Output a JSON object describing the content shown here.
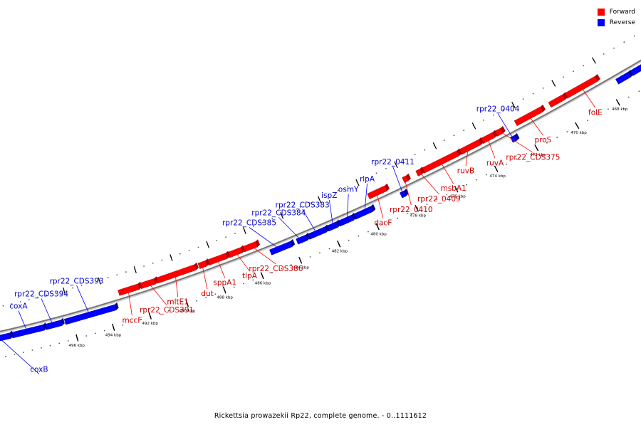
{
  "legend": [
    {
      "label": "Forward",
      "color": "#ff0000"
    },
    {
      "label": "Reverse",
      "color": "#0000ff"
    }
  ],
  "colors": {
    "forward": "#ff0000",
    "forward_dark": "#b00000",
    "forward_light": "#ff7a7a",
    "reverse": "#0000ff",
    "reverse_dark": "#000099",
    "reverse_light": "#6a6aff",
    "backbone": "#777777",
    "forward_label": "#cc0000",
    "reverse_label": "#0000cc"
  },
  "caption": "Rickettsia prowazekii Rp22, complete genome. - 0..1111612",
  "map": {
    "kbp_start": 466,
    "kbp_end": 498,
    "ticks": [
      {
        "kbp": 468,
        "label": "468 kbp"
      },
      {
        "kbp": 470,
        "label": "470 kbp"
      },
      {
        "kbp": 472,
        "label": "472 kbp"
      },
      {
        "kbp": 474,
        "label": "474 kbp"
      },
      {
        "kbp": 476,
        "label": "476 kbp"
      },
      {
        "kbp": 478,
        "label": "478 kbp"
      },
      {
        "kbp": 480,
        "label": "480 kbp"
      },
      {
        "kbp": 482,
        "label": "482 kbp"
      },
      {
        "kbp": 484,
        "label": "484 kbp"
      },
      {
        "kbp": 486,
        "label": "486 kbp"
      },
      {
        "kbp": 488,
        "label": "488 kbp"
      },
      {
        "kbp": 490,
        "label": "490 kbp"
      },
      {
        "kbp": 492,
        "label": "492 kbp"
      },
      {
        "kbp": 494,
        "label": "494 kbp"
      },
      {
        "kbp": 496,
        "label": "496 kbp"
      }
    ]
  },
  "genes": [
    {
      "name": "",
      "strand": "reverse",
      "start": 466.3,
      "end": 466.9
    },
    {
      "name": "",
      "strand": "reverse",
      "start": 467.0,
      "end": 467.6
    },
    {
      "name": "folE",
      "strand": "forward",
      "start": 468.3,
      "end": 469.8
    },
    {
      "name": "",
      "strand": "forward",
      "start": 469.9,
      "end": 470.6
    },
    {
      "name": "proS",
      "strand": "forward",
      "start": 471.0,
      "end": 472.3
    },
    {
      "name": "rpr22_0404",
      "strand": "reverse",
      "start": 472.6,
      "end": 472.8
    },
    {
      "name": "rpr22_CDS375",
      "strand": "forward",
      "start": 473.0,
      "end": 473.3
    },
    {
      "name": "ruvA",
      "strand": "forward",
      "start": 473.4,
      "end": 474.0
    },
    {
      "name": "ruvB",
      "strand": "forward",
      "start": 474.1,
      "end": 475.1
    },
    {
      "name": "msbA1",
      "strand": "forward",
      "start": 475.2,
      "end": 477.0
    },
    {
      "name": "rpr22_0409",
      "strand": "forward",
      "start": 477.1,
      "end": 477.3
    },
    {
      "name": "rpr22_0410",
      "strand": "forward",
      "start": 477.8,
      "end": 478.0
    },
    {
      "name": "rpr22_0411",
      "strand": "reverse",
      "start": 478.2,
      "end": 478.4
    },
    {
      "name": "dacF",
      "strand": "forward",
      "start": 478.9,
      "end": 479.8
    },
    {
      "name": "rlpA",
      "strand": "reverse",
      "start": 479.9,
      "end": 480.8
    },
    {
      "name": "osmY",
      "strand": "reverse",
      "start": 480.9,
      "end": 481.6
    },
    {
      "name": "ispZ",
      "strand": "reverse",
      "start": 481.7,
      "end": 482.2
    },
    {
      "name": "rpr22_CDS383",
      "strand": "reverse",
      "start": 482.3,
      "end": 483.2
    },
    {
      "name": "rpr22_CDS384",
      "strand": "reverse",
      "start": 483.3,
      "end": 483.8
    },
    {
      "name": "rpr22_CDS385",
      "strand": "reverse",
      "start": 484.1,
      "end": 485.2
    },
    {
      "name": "rpr22_CDS386",
      "strand": "forward",
      "start": 485.7,
      "end": 486.4
    },
    {
      "name": "tlpA",
      "strand": "forward",
      "start": 486.5,
      "end": 487.2
    },
    {
      "name": "sppA1",
      "strand": "forward",
      "start": 487.3,
      "end": 488.3
    },
    {
      "name": "dut",
      "strand": "forward",
      "start": 488.4,
      "end": 488.8
    },
    {
      "name": "mltE1",
      "strand": "forward",
      "start": 489.0,
      "end": 491.1
    },
    {
      "name": "rpr22_CDS391",
      "strand": "forward",
      "start": 491.2,
      "end": 492.0
    },
    {
      "name": "mccF",
      "strand": "forward",
      "start": 492.1,
      "end": 493.2
    },
    {
      "name": "rpr22_CDS393",
      "strand": "reverse",
      "start": 493.6,
      "end": 496.4
    },
    {
      "name": "rpr22_CDS394",
      "strand": "reverse",
      "start": 496.6,
      "end": 497.5
    },
    {
      "name": "coxA",
      "strand": "reverse",
      "start": 497.6,
      "end": 499.4
    },
    {
      "name": "coxB",
      "strand": "reverse",
      "start": 499.5,
      "end": 500.5
    }
  ]
}
